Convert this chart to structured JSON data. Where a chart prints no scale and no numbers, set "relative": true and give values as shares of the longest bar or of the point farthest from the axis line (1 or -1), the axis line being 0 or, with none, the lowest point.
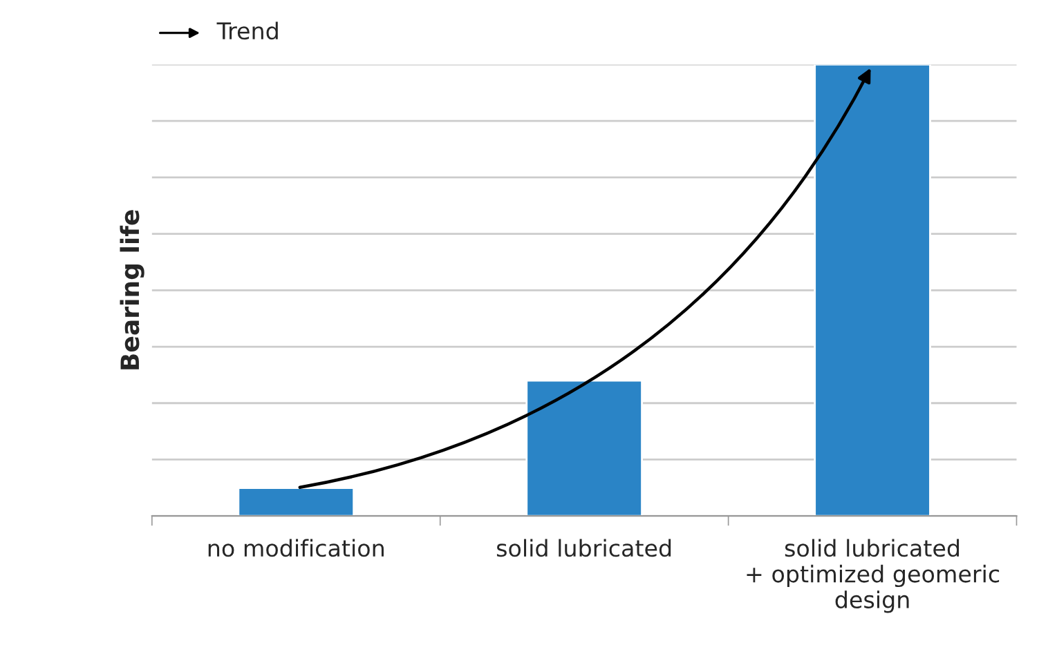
{
  "chart_data": {
    "type": "bar",
    "ylabel": "Bearing life",
    "relative": true,
    "categories": [
      "no modification",
      "solid lubricated",
      "solid lubricated\n+ optimized geomeric\ndesign"
    ],
    "series": [
      {
        "color": "#2a84c6",
        "values": [
          0.062,
          0.3,
          1.0
        ]
      }
    ],
    "annotations": [
      "Trend"
    ],
    "grid": "y"
  }
}
